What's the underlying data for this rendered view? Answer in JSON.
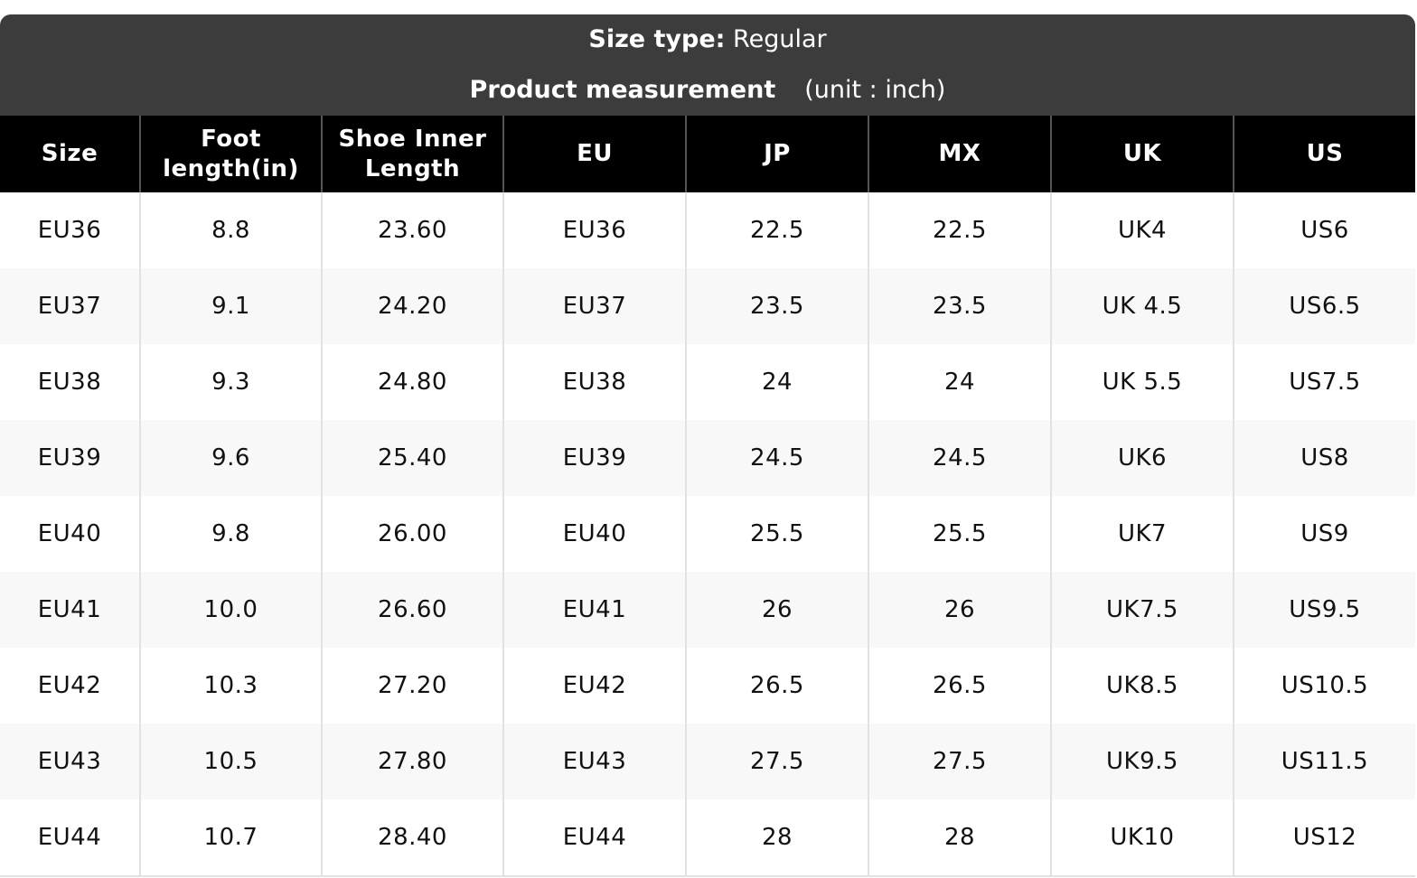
{
  "header": {
    "size_type_label": "Size type:",
    "size_type_value": "Regular",
    "measurement_label": "Product measurement",
    "unit_note": "(unit : inch)"
  },
  "table": {
    "columns": [
      "Size",
      "Foot length(in)",
      "Shoe Inner Length",
      "EU",
      "JP",
      "MX",
      "UK",
      "US"
    ],
    "rows": [
      [
        "EU36",
        "8.8",
        "23.60",
        "EU36",
        "22.5",
        "22.5",
        "UK4",
        "US6"
      ],
      [
        "EU37",
        "9.1",
        "24.20",
        "EU37",
        "23.5",
        "23.5",
        "UK 4.5",
        "US6.5"
      ],
      [
        "EU38",
        "9.3",
        "24.80",
        "EU38",
        "24",
        "24",
        "UK 5.5",
        "US7.5"
      ],
      [
        "EU39",
        "9.6",
        "25.40",
        "EU39",
        "24.5",
        "24.5",
        "UK6",
        "US8"
      ],
      [
        "EU40",
        "9.8",
        "26.00",
        "EU40",
        "25.5",
        "25.5",
        "UK7",
        "US9"
      ],
      [
        "EU41",
        "10.0",
        "26.60",
        "EU41",
        "26",
        "26",
        "UK7.5",
        "US9.5"
      ],
      [
        "EU42",
        "10.3",
        "27.20",
        "EU42",
        "26.5",
        "26.5",
        "UK8.5",
        "US10.5"
      ],
      [
        "EU43",
        "10.5",
        "27.80",
        "EU43",
        "27.5",
        "27.5",
        "UK9.5",
        "US11.5"
      ],
      [
        "EU44",
        "10.7",
        "28.40",
        "EU44",
        "28",
        "28",
        "UK10",
        "US12"
      ]
    ]
  }
}
